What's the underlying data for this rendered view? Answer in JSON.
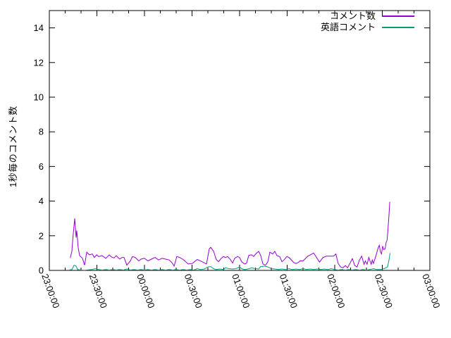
{
  "figure": {
    "background": "#ffffff",
    "border_color": "#000000",
    "text_color": "#000000"
  },
  "chart_data": {
    "type": "line",
    "title": "",
    "xlabel": "",
    "ylabel": "1秒毎のコメント数",
    "x_unit": "minutes since 23:00:00",
    "xlim_minutes": [
      0,
      240
    ],
    "ylim": [
      0,
      15
    ],
    "y_ticks": [
      0,
      2,
      4,
      6,
      8,
      10,
      12,
      14
    ],
    "x_tick_minutes": [
      0,
      30,
      60,
      90,
      120,
      150,
      180,
      210,
      240
    ],
    "x_tick_labels": [
      "23:00:00",
      "23:30:00",
      "00:00:00",
      "00:30:00",
      "01:00:00",
      "01:30:00",
      "02:00:00",
      "02:30:00",
      "03:00:00"
    ],
    "x_minor_tick_step_minutes": 10,
    "grid": false,
    "legend_position": "top-right-inside",
    "series": [
      {
        "name": "コメント数",
        "color": "#9400d3",
        "points": [
          [
            13.2,
            0.72
          ],
          [
            14.2,
            1.1
          ],
          [
            14.8,
            1.8
          ],
          [
            16,
            3.0
          ],
          [
            16.9,
            1.9
          ],
          [
            17.3,
            2.3
          ],
          [
            18.2,
            1.3
          ],
          [
            19.1,
            0.85
          ],
          [
            20.9,
            0.7
          ],
          [
            22.2,
            0.3
          ],
          [
            23.6,
            1.05
          ],
          [
            25.3,
            0.9
          ],
          [
            27.1,
            0.95
          ],
          [
            28.4,
            0.75
          ],
          [
            29.8,
            0.9
          ],
          [
            31.1,
            0.8
          ],
          [
            33.3,
            0.85
          ],
          [
            35.6,
            0.7
          ],
          [
            37.8,
            0.9
          ],
          [
            39.1,
            0.78
          ],
          [
            40.9,
            0.72
          ],
          [
            42.2,
            0.85
          ],
          [
            44.4,
            0.65
          ],
          [
            45.8,
            0.75
          ],
          [
            47.1,
            0.75
          ],
          [
            48.9,
            0.3
          ],
          [
            51.1,
            0.55
          ],
          [
            52.4,
            0.8
          ],
          [
            54.2,
            0.75
          ],
          [
            56.4,
            0.55
          ],
          [
            57.8,
            0.65
          ],
          [
            60,
            0.7
          ],
          [
            62.2,
            0.55
          ],
          [
            64.4,
            0.65
          ],
          [
            66.7,
            0.75
          ],
          [
            68.9,
            0.6
          ],
          [
            71.1,
            0.7
          ],
          [
            73.3,
            0.65
          ],
          [
            75.6,
            0.6
          ],
          [
            77.3,
            0.45
          ],
          [
            78.7,
            0.25
          ],
          [
            80.4,
            0.8
          ],
          [
            82.2,
            0.75
          ],
          [
            84.4,
            0.63
          ],
          [
            87.6,
            0.37
          ],
          [
            90.2,
            0.4
          ],
          [
            93.3,
            0.63
          ],
          [
            96.4,
            0.5
          ],
          [
            99.1,
            0.37
          ],
          [
            100.9,
            1.25
          ],
          [
            101.8,
            1.33
          ],
          [
            103.6,
            1.1
          ],
          [
            105.3,
            0.63
          ],
          [
            106.7,
            0.5
          ],
          [
            108.4,
            0.7
          ],
          [
            109.8,
            0.8
          ],
          [
            111.1,
            0.75
          ],
          [
            112.4,
            0.8
          ],
          [
            114.2,
            0.63
          ],
          [
            115.6,
            0.42
          ],
          [
            116.9,
            0.7
          ],
          [
            118.7,
            0.8
          ],
          [
            120,
            0.75
          ],
          [
            121.3,
            0.5
          ],
          [
            123.1,
            0.37
          ],
          [
            124.4,
            0.42
          ],
          [
            125.8,
            0.87
          ],
          [
            127.6,
            0.9
          ],
          [
            128.9,
            0.8
          ],
          [
            130.2,
            0.95
          ],
          [
            132,
            1.1
          ],
          [
            133.3,
            0.87
          ],
          [
            134.7,
            0.37
          ],
          [
            136.4,
            0.3
          ],
          [
            137.8,
            0.5
          ],
          [
            139.1,
            1.05
          ],
          [
            140.9,
            0.95
          ],
          [
            142.2,
            1.1
          ],
          [
            143.6,
            0.85
          ],
          [
            145.3,
            0.8
          ],
          [
            146.7,
            0.5
          ],
          [
            148,
            0.6
          ],
          [
            149.8,
            0.8
          ],
          [
            151.1,
            0.75
          ],
          [
            152.4,
            0.63
          ],
          [
            154.2,
            0.45
          ],
          [
            155.6,
            0.4
          ],
          [
            156.9,
            0.45
          ],
          [
            158.2,
            0.55
          ],
          [
            160,
            0.55
          ],
          [
            163,
            0.82
          ],
          [
            166.7,
            1.0
          ],
          [
            170.4,
            0.48
          ],
          [
            172.6,
            0.75
          ],
          [
            174.8,
            0.82
          ],
          [
            177,
            0.82
          ],
          [
            179.3,
            0.82
          ],
          [
            180.7,
            0.95
          ],
          [
            182.2,
            0.4
          ],
          [
            183.7,
            0.2
          ],
          [
            185.2,
            0.15
          ],
          [
            186.7,
            0.28
          ],
          [
            188.1,
            0.15
          ],
          [
            189.6,
            0.4
          ],
          [
            191.1,
            0.68
          ],
          [
            192.6,
            0.28
          ],
          [
            194.1,
            0.2
          ],
          [
            195.6,
            0.6
          ],
          [
            197,
            0.82
          ],
          [
            198.5,
            0.35
          ],
          [
            199.3,
            0.55
          ],
          [
            200.4,
            0.35
          ],
          [
            201.5,
            0.75
          ],
          [
            202.2,
            0.55
          ],
          [
            203,
            0.35
          ],
          [
            203.7,
            0.6
          ],
          [
            204.4,
            0.4
          ],
          [
            205.9,
            0.82
          ],
          [
            207.4,
            1.3
          ],
          [
            208.1,
            1.45
          ],
          [
            208.9,
            1.05
          ],
          [
            209.5,
            0.95
          ],
          [
            210.2,
            1.4
          ],
          [
            211,
            1.2
          ],
          [
            211.8,
            1.25
          ],
          [
            212.4,
            1.6
          ],
          [
            213,
            1.75
          ],
          [
            213.6,
            2.4
          ],
          [
            214.2,
            3.2
          ],
          [
            214.7,
            3.95
          ]
        ]
      },
      {
        "name": "英語コメント",
        "color": "#009e73",
        "points": [
          [
            12.4,
            0.02
          ],
          [
            14.2,
            0.05
          ],
          [
            15.6,
            0.3
          ],
          [
            16.9,
            0.25
          ],
          [
            17.8,
            0.05
          ],
          [
            20,
            0.02
          ],
          [
            22.2,
            0.01
          ],
          [
            24.4,
            0.03
          ],
          [
            26.7,
            0.05
          ],
          [
            28.9,
            0.1
          ],
          [
            31.1,
            0.05
          ],
          [
            33.3,
            0.02
          ],
          [
            35.6,
            0.05
          ],
          [
            37.8,
            0.02
          ],
          [
            40,
            0.05
          ],
          [
            42.2,
            0.02
          ],
          [
            44.4,
            0.05
          ],
          [
            46.7,
            0.02
          ],
          [
            48.9,
            0.08
          ],
          [
            51.1,
            0.02
          ],
          [
            53.3,
            0.05
          ],
          [
            55.6,
            0.02
          ],
          [
            57.8,
            0.05
          ],
          [
            60,
            0.02
          ],
          [
            62.2,
            0.05
          ],
          [
            64.4,
            0.02
          ],
          [
            66.7,
            0.05
          ],
          [
            68.9,
            0.02
          ],
          [
            71.1,
            0.05
          ],
          [
            73.3,
            0.02
          ],
          [
            75.6,
            0.05
          ],
          [
            77.8,
            0.02
          ],
          [
            80,
            0.05
          ],
          [
            82.2,
            0.02
          ],
          [
            84.4,
            0.05
          ],
          [
            86.7,
            0.02
          ],
          [
            88.9,
            0.05
          ],
          [
            91.1,
            0.02
          ],
          [
            93.3,
            0.1
          ],
          [
            95.6,
            0.05
          ],
          [
            97.8,
            0.08
          ],
          [
            100,
            0.2
          ],
          [
            101.8,
            0.22
          ],
          [
            103.6,
            0.1
          ],
          [
            105.3,
            0.05
          ],
          [
            107.6,
            0.08
          ],
          [
            109.8,
            0.05
          ],
          [
            111.1,
            0.15
          ],
          [
            113.3,
            0.1
          ],
          [
            115.6,
            0.08
          ],
          [
            117.8,
            0.1
          ],
          [
            120,
            0.2
          ],
          [
            121.3,
            0.1
          ],
          [
            123.1,
            0.05
          ],
          [
            125.3,
            0.08
          ],
          [
            127.6,
            0.15
          ],
          [
            129.8,
            0.1
          ],
          [
            132,
            0.08
          ],
          [
            133.3,
            0.22
          ],
          [
            135.6,
            0.25
          ],
          [
            137.8,
            0.2
          ],
          [
            140,
            0.1
          ],
          [
            142.2,
            0.08
          ],
          [
            144.4,
            0.05
          ],
          [
            146.7,
            0.08
          ],
          [
            148.9,
            0.05
          ],
          [
            151.1,
            0.1
          ],
          [
            153.3,
            0.05
          ],
          [
            155.6,
            0.08
          ],
          [
            157.8,
            0.05
          ],
          [
            160,
            0.1
          ],
          [
            162.2,
            0.05
          ],
          [
            164.4,
            0.08
          ],
          [
            166.7,
            0.05
          ],
          [
            168.9,
            0.08
          ],
          [
            171.1,
            0.05
          ],
          [
            173.3,
            0.08
          ],
          [
            175.6,
            0.05
          ],
          [
            177.8,
            0.1
          ],
          [
            180,
            0.05
          ],
          [
            182.2,
            0.02
          ],
          [
            184.4,
            0.05
          ],
          [
            186.7,
            0.02
          ],
          [
            188.9,
            0.05
          ],
          [
            191.1,
            0.02
          ],
          [
            193.3,
            0.05
          ],
          [
            195.6,
            0.02
          ],
          [
            197.8,
            0.05
          ],
          [
            200,
            0.02
          ],
          [
            202.2,
            0.05
          ],
          [
            204.4,
            0.1
          ],
          [
            206.7,
            0.05
          ],
          [
            208.9,
            0.05
          ],
          [
            211.1,
            0.1
          ],
          [
            212.4,
            0.15
          ],
          [
            213.3,
            0.2
          ],
          [
            214.2,
            0.6
          ],
          [
            214.9,
            1.0
          ]
        ]
      }
    ]
  }
}
